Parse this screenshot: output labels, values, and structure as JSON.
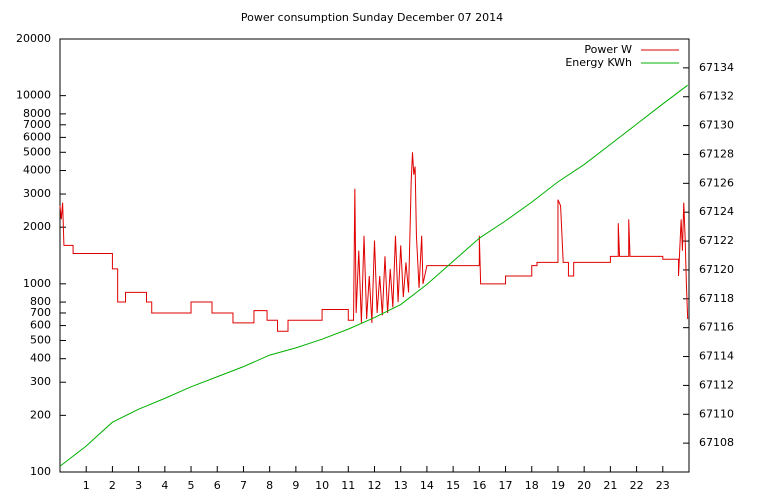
{
  "chart_data": {
    "type": "line",
    "title": "Power consumption Sunday December 07 2014",
    "xlim": [
      0,
      24
    ],
    "xticks": [
      1,
      2,
      3,
      4,
      5,
      6,
      7,
      8,
      9,
      10,
      11,
      12,
      13,
      14,
      15,
      16,
      17,
      18,
      19,
      20,
      21,
      22,
      23
    ],
    "ylim": [
      100,
      20000
    ],
    "log_y": true,
    "yticks": [
      100,
      200,
      300,
      400,
      500,
      600,
      700,
      800,
      1000,
      2000,
      3000,
      4000,
      5000,
      6000,
      7000,
      8000,
      10000,
      20000
    ],
    "y2lim": [
      67106,
      67136
    ],
    "y2ticks": [
      67108,
      67110,
      67112,
      67114,
      67116,
      67118,
      67120,
      67122,
      67124,
      67126,
      67128,
      67130,
      67132,
      67134
    ],
    "grid": false,
    "legend": "top-right",
    "series": [
      {
        "name": "Power W",
        "color": "#e00000",
        "axis": "y",
        "x": [
          0,
          0.05,
          0.1,
          0.15,
          0.5,
          0.5,
          2,
          2,
          2.2,
          2.2,
          2.5,
          2.5,
          3.3,
          3.3,
          3.5,
          3.5,
          5,
          5,
          5.8,
          5.8,
          6.6,
          6.6,
          7.4,
          7.4,
          7.9,
          7.9,
          8.3,
          8.3,
          8.7,
          8.7,
          10,
          10,
          11,
          11,
          11.2,
          11.25,
          11.3,
          11.4,
          11.5,
          11.6,
          11.7,
          11.8,
          11.9,
          12,
          12.1,
          12.2,
          12.3,
          12.4,
          12.5,
          12.6,
          12.7,
          12.8,
          12.9,
          13,
          13.1,
          13.2,
          13.3,
          13.4,
          13.45,
          13.5,
          13.55,
          13.6,
          13.7,
          13.8,
          13.85,
          14,
          16,
          16,
          16.05,
          17,
          17,
          18,
          18,
          18.2,
          18.2,
          19,
          19,
          19.1,
          19.2,
          19.4,
          19.4,
          19.6,
          19.6,
          21,
          21,
          21.3,
          21.3,
          21.35,
          21.7,
          21.7,
          21.75,
          23,
          23,
          23.6,
          23.6,
          23.7,
          23.75,
          23.8,
          23.85,
          23.9,
          23.95
        ],
        "values": [
          2600,
          2200,
          2700,
          1600,
          1600,
          1450,
          1450,
          1200,
          1200,
          800,
          800,
          900,
          900,
          800,
          800,
          700,
          700,
          800,
          800,
          700,
          700,
          620,
          620,
          720,
          720,
          640,
          640,
          560,
          560,
          640,
          640,
          730,
          730,
          640,
          640,
          3200,
          700,
          1500,
          620,
          1800,
          650,
          1100,
          620,
          1700,
          700,
          1100,
          680,
          1400,
          700,
          1200,
          750,
          1800,
          800,
          1600,
          850,
          1300,
          900,
          3500,
          5000,
          3800,
          4200,
          1800,
          950,
          1800,
          1000,
          1250,
          1250,
          1800,
          1000,
          1000,
          1100,
          1100,
          1250,
          1250,
          1300,
          1300,
          2800,
          2600,
          1300,
          1300,
          1100,
          1100,
          1300,
          1300,
          1400,
          1400,
          2100,
          1400,
          1400,
          2200,
          1400,
          1400,
          1350,
          1350,
          1100,
          2200,
          1500,
          2700,
          1800,
          1000,
          650
        ]
      },
      {
        "name": "Energy KWh",
        "color": "#00b000",
        "axis": "y2",
        "x": [
          0,
          1,
          2,
          3,
          4,
          5,
          6,
          7,
          8,
          9,
          10,
          11,
          12,
          13,
          14,
          15,
          16,
          17,
          18,
          19,
          20,
          21,
          22,
          23,
          23.95
        ],
        "values": [
          67106.4,
          67107.8,
          67109.45,
          67110.35,
          67111.1,
          67111.9,
          67112.6,
          67113.3,
          67114.1,
          67114.6,
          67115.2,
          67115.9,
          67116.7,
          67117.6,
          67119.0,
          67120.6,
          67122.2,
          67123.4,
          67124.7,
          67126.1,
          67127.3,
          67128.7,
          67130.1,
          67131.5,
          67132.8
        ]
      }
    ]
  }
}
